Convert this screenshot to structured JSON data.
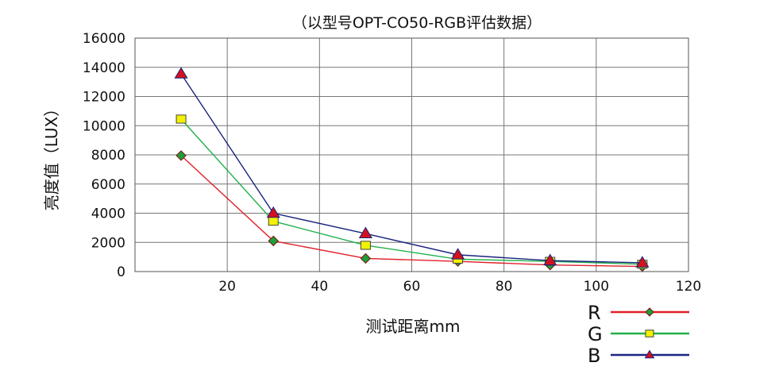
{
  "chart_data": {
    "type": "line",
    "title": "（以型号OPT-CO50-RGB评估数据）",
    "xlabel": "测试距离mm",
    "ylabel": "亮度值（LUX）",
    "xlim": [
      0,
      120
    ],
    "ylim": [
      0,
      16000
    ],
    "x_ticks": [
      20,
      40,
      60,
      80,
      100,
      120
    ],
    "y_ticks": [
      0,
      2000,
      4000,
      6000,
      8000,
      10000,
      12000,
      14000,
      16000
    ],
    "x_tick_labels": [
      "20",
      "40",
      "60",
      "80",
      "100",
      "120"
    ],
    "y_tick_labels": [
      "0",
      "2000",
      "4000",
      "6000",
      "8000",
      "10000",
      "12000",
      "14000",
      "16000"
    ],
    "grid": true,
    "legend_position": "bottom-right",
    "x": [
      10,
      30,
      50,
      70,
      90,
      110
    ],
    "series": [
      {
        "name": "R",
        "color": "#e0202a",
        "marker": "diamond",
        "marker_fill": "#1e9e3a",
        "values": [
          7950,
          2100,
          900,
          700,
          450,
          350
        ]
      },
      {
        "name": "G",
        "color": "#1fb14a",
        "marker": "square",
        "marker_fill": "#f2f200",
        "values": [
          10450,
          3450,
          1800,
          850,
          700,
          500
        ]
      },
      {
        "name": "B",
        "color": "#1a237e",
        "marker": "triangle",
        "marker_fill": "#d4111c",
        "values": [
          13550,
          4000,
          2600,
          1150,
          750,
          600
        ]
      }
    ]
  }
}
